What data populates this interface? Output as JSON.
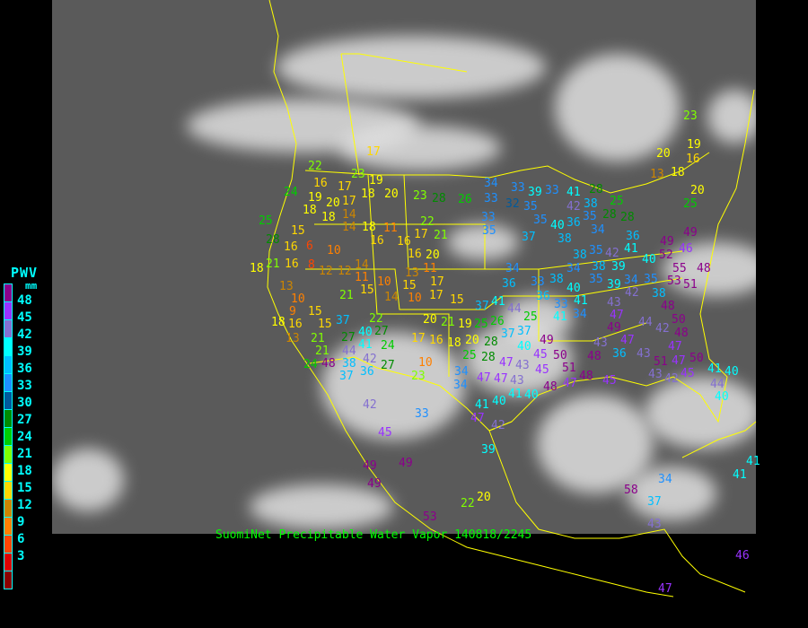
{
  "caption": "SuomiNet Precipitable Water Vapor 140818/2245",
  "legend": {
    "title": "PWV",
    "unit": "mm",
    "labels": [
      "48",
      "45",
      "42",
      "39",
      "36",
      "33",
      "30",
      "27",
      "24",
      "21",
      "18",
      "15",
      "12",
      "9",
      "6",
      "3"
    ],
    "colors": [
      "#8b008b",
      "#9933ff",
      "#8470d0",
      "#00ffff",
      "#00bfff",
      "#1e90ff",
      "#005a9c",
      "#008b00",
      "#00cd00",
      "#7fff00",
      "#ffff00",
      "#ffd700",
      "#cd8500",
      "#ff8000",
      "#ff4500",
      "#dd0000",
      "#8b0000"
    ]
  },
  "colors": {
    "borders": "#ffff00",
    "caption": "#00ff00",
    "legend_text": "#00ffff"
  },
  "stations_pwv_mm": [
    17,
    22,
    23,
    24,
    16,
    17,
    19,
    18,
    20,
    23,
    28,
    26,
    19,
    20,
    18,
    18,
    14,
    25,
    17,
    18,
    14,
    15,
    28,
    16,
    6,
    10,
    16,
    16,
    11,
    17,
    22,
    21,
    16,
    20,
    21,
    16,
    8,
    12,
    12,
    14,
    13,
    11,
    11,
    18,
    13,
    10,
    9,
    16,
    18,
    13,
    15,
    10,
    15,
    17,
    14,
    10,
    17,
    15,
    21,
    22,
    20,
    21,
    19,
    25,
    15,
    15,
    37,
    40,
    27,
    27,
    44,
    21,
    21,
    48,
    38,
    41,
    42,
    24,
    17,
    16,
    18,
    20,
    25,
    28,
    24,
    37,
    36,
    27,
    10,
    23,
    34,
    34,
    47,
    40,
    41,
    47,
    33,
    42,
    45,
    49,
    49,
    49,
    39,
    42,
    20,
    53,
    22,
    34,
    33,
    39,
    33,
    33,
    32,
    35,
    33,
    35,
    37,
    35,
    41,
    28,
    42,
    38,
    35,
    40,
    36,
    34,
    28,
    28,
    25,
    38,
    38,
    35,
    42,
    41,
    36,
    38,
    39,
    40,
    52,
    49,
    49,
    46,
    48,
    55,
    53,
    51,
    35,
    39,
    34,
    42,
    34,
    36,
    33,
    38,
    34,
    40,
    41,
    38,
    48,
    50,
    35,
    36,
    33,
    41,
    34,
    41,
    44,
    43,
    47,
    49,
    47,
    44,
    42,
    48,
    43,
    36,
    47,
    43,
    51,
    48,
    49,
    45,
    50,
    51,
    43,
    45,
    40,
    47,
    50,
    47,
    45,
    42,
    41,
    40,
    43,
    44,
    40,
    47,
    43,
    41,
    40,
    48,
    48,
    47,
    45,
    37,
    26,
    37,
    37,
    28,
    25,
    23,
    20,
    13,
    18,
    16,
    20,
    25,
    58,
    34,
    37,
    43,
    41,
    46,
    47,
    41,
    19
  ]
}
